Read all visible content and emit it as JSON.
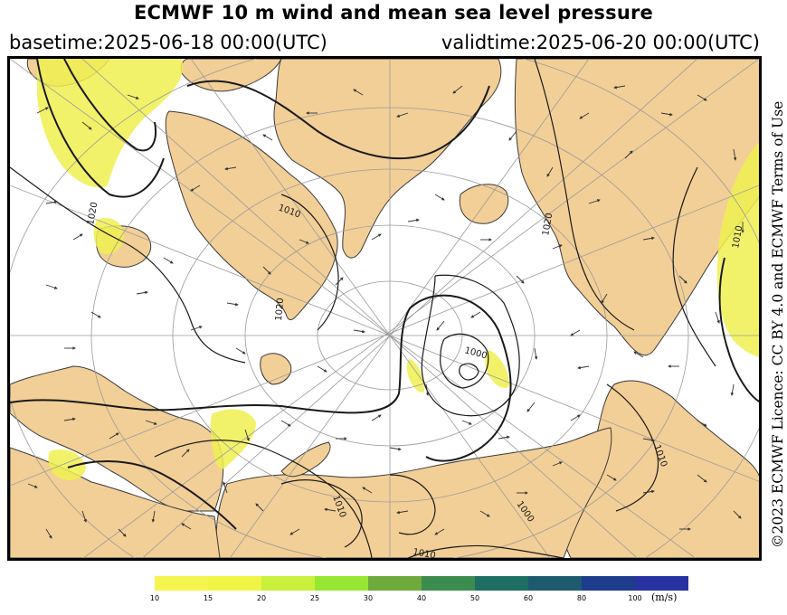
{
  "header": {
    "title": "ECMWF 10 m wind and mean sea level pressure",
    "basetime": "basetime:2025-06-18 00:00(UTC)",
    "validtime": "validtime:2025-06-20 00:00(UTC)"
  },
  "licence": "©2023 ECMWF Licence: CC BY 4.0 and ECMWF Terms of Use",
  "map": {
    "projection": "north-polar-stereographic",
    "colors": {
      "land": "#f2cf97",
      "sea": "#ffffff",
      "isobar": "#1a1a1a",
      "graticule": "#9a9a9a",
      "wind-10-15": "#f0f050"
    },
    "isobar_labels": [
      {
        "text": "1010",
        "kind": "isobar"
      },
      {
        "text": "1020",
        "kind": "isobar"
      },
      {
        "text": "1000",
        "kind": "isobar"
      },
      {
        "text": "1020",
        "kind": "isobar"
      },
      {
        "text": "1010",
        "kind": "isobar"
      },
      {
        "text": "1010",
        "kind": "isobar"
      },
      {
        "text": "1000",
        "kind": "isobar"
      },
      {
        "text": "1010",
        "kind": "isobar"
      },
      {
        "text": "1010",
        "kind": "isobar"
      },
      {
        "text": "1020",
        "kind": "isobar"
      }
    ]
  },
  "colorbar": {
    "unit": "(m/s)",
    "ticks": [
      "10",
      "15",
      "20",
      "25",
      "30",
      "40",
      "50",
      "60",
      "80",
      "100"
    ],
    "colors": [
      "#f5f550",
      "#f0f545",
      "#c8f03c",
      "#96e632",
      "#6eaa3c",
      "#3c8c50",
      "#1e6e64",
      "#1e5a6e",
      "#1e3c8c",
      "#2832a0"
    ]
  }
}
